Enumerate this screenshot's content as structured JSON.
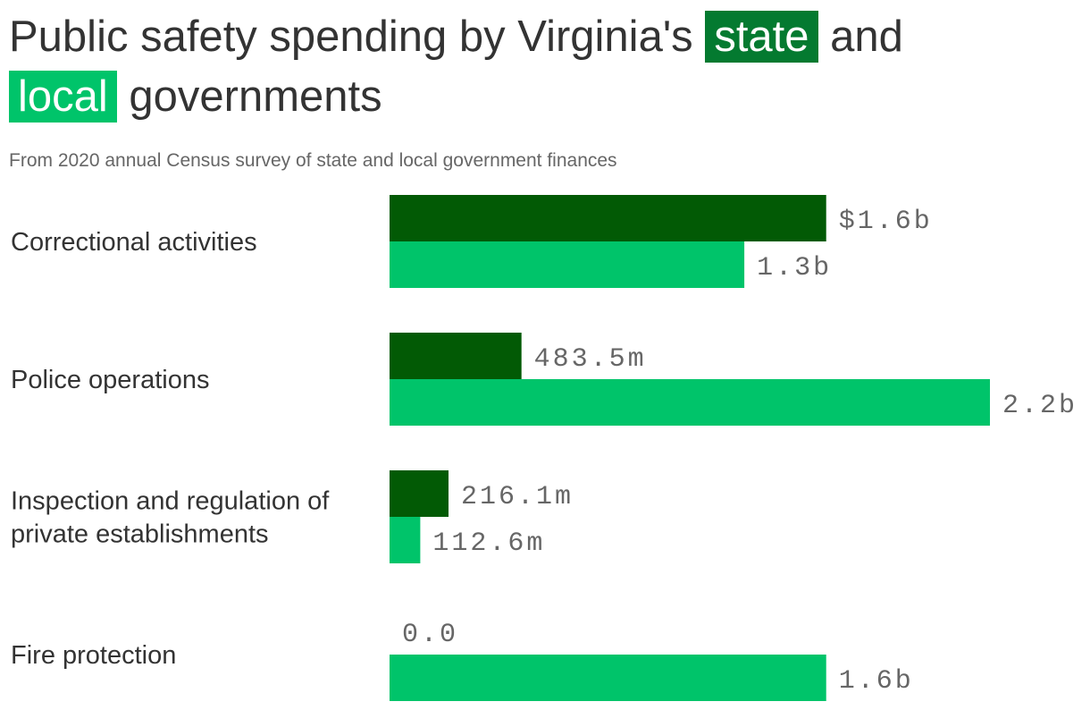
{
  "title": {
    "part1": "Public safety spending by Virginia's",
    "state": "state",
    "part2": "and",
    "local": "local",
    "part3": "governments"
  },
  "subtitle": "From 2020 annual Census survey of state and local government finances",
  "colors": {
    "state": "#025a05",
    "local": "#00c46a",
    "state_highlight": "#047a30"
  },
  "chart_data": {
    "type": "bar",
    "orientation": "horizontal",
    "categories": [
      [
        "Correctional activities"
      ],
      [
        "Police operations"
      ],
      [
        "Inspection and regulation of",
        "private establishments"
      ],
      [
        "Fire protection"
      ]
    ],
    "series": [
      {
        "name": "state",
        "values": [
          1.6,
          0.4835,
          0.2161,
          0.0
        ],
        "labels": [
          "$1.6b",
          "483.5m",
          "216.1m",
          "0.0"
        ]
      },
      {
        "name": "local",
        "values": [
          1.3,
          2.2,
          0.1126,
          1.6
        ],
        "labels": [
          "1.3b",
          "2.2b",
          "112.6m",
          "1.6b"
        ]
      }
    ],
    "unit": "billions of dollars",
    "xlim": [
      0,
      2.2
    ],
    "grid": false,
    "legend": "title"
  }
}
